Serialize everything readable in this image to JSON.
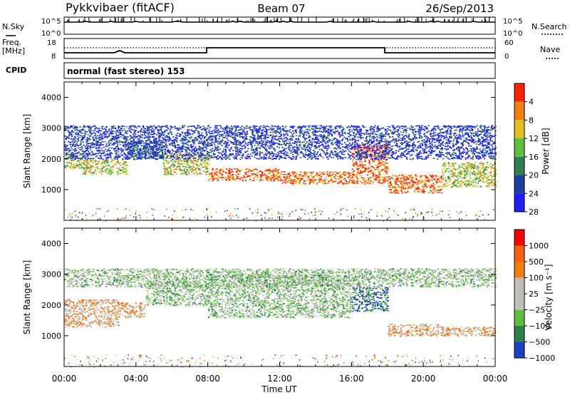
{
  "header": {
    "station": "Pykkvibaer (fitACF)",
    "beam": "Beam 07",
    "date": "26/Sep/2013"
  },
  "top_panels": {
    "nsky_label": "N.Sky",
    "nsky_ticks": [
      "10^5",
      "10^0"
    ],
    "nsearch_label": "N.Search",
    "nsearch_ticks": [
      "10^5",
      "10^0"
    ],
    "freq_label": "Freq.",
    "freq_unit": "[MHz]",
    "freq_ticks": [
      "18",
      "8"
    ],
    "nave_label": "Nave",
    "nave_ticks": [
      "60",
      "0"
    ],
    "cpid_label": "CPID",
    "cpid_text": "normal (fast stereo) 153"
  },
  "chart_data": [
    {
      "type": "heatmap",
      "ylabel": "Slant Range [km]",
      "yticks": [
        "1000",
        "2000",
        "3000",
        "4000"
      ],
      "ylim": [
        0,
        4500
      ],
      "colorbar": {
        "label": "Power [dB]",
        "ticks": [
          "4",
          "8",
          "12",
          "16",
          "20",
          "24",
          "28"
        ],
        "colors": [
          "#1f1fff",
          "#1f3fa0",
          "#2f7f4f",
          "#5fbf3f",
          "#e0c020",
          "#f08010",
          "#ff2000"
        ]
      },
      "bands": [
        {
          "t0": 0.0,
          "t1": 1.0,
          "r0": 1700,
          "r1": 2200,
          "level": 4
        },
        {
          "t0": 1.0,
          "t1": 3.5,
          "r0": 1500,
          "r1": 2000,
          "level": 4
        },
        {
          "t0": 3.5,
          "t1": 5.5,
          "r0": 2000,
          "r1": 2600,
          "level": 2
        },
        {
          "t0": 5.5,
          "t1": 8.0,
          "r0": 1500,
          "r1": 2200,
          "level": 4
        },
        {
          "t0": 8.0,
          "t1": 12.0,
          "r0": 1300,
          "r1": 1700,
          "level": 6
        },
        {
          "t0": 12.0,
          "t1": 16.0,
          "r0": 1200,
          "r1": 1600,
          "level": 6
        },
        {
          "t0": 16.0,
          "t1": 18.0,
          "r0": 1200,
          "r1": 2500,
          "level": 6
        },
        {
          "t0": 18.0,
          "t1": 21.0,
          "r0": 900,
          "r1": 1500,
          "level": 6
        },
        {
          "t0": 21.0,
          "t1": 24.0,
          "r0": 1100,
          "r1": 1900,
          "level": 4
        },
        {
          "t0": 0.0,
          "t1": 24.0,
          "r0": 2000,
          "r1": 3100,
          "level": 1
        }
      ]
    },
    {
      "type": "heatmap",
      "xlabel": "Time UT",
      "xticks": [
        "00:00",
        "04:00",
        "08:00",
        "12:00",
        "16:00",
        "20:00",
        "00:00"
      ],
      "ylabel": "Slant Range [km]",
      "yticks": [
        "1000",
        "2000",
        "3000",
        "4000"
      ],
      "ylim": [
        0,
        4500
      ],
      "colorbar": {
        "label": "Velocity [m s⁻¹]",
        "ticks": [
          "1000",
          "500",
          "100",
          "25",
          "−25",
          "−100",
          "−500",
          "−1000"
        ],
        "colors": [
          "#1f3fbf",
          "#2f7f4f",
          "#5fbf3f",
          "#bfbfb8",
          "#bfbfb8",
          "#f08010",
          "#ff6010",
          "#ff0000"
        ]
      },
      "bands": [
        {
          "t0": 0.0,
          "t1": 3.0,
          "r0": 1300,
          "r1": 2200,
          "level": 5
        },
        {
          "t0": 3.0,
          "t1": 4.5,
          "r0": 1600,
          "r1": 2100,
          "level": 5
        },
        {
          "t0": 4.5,
          "t1": 8.0,
          "r0": 2000,
          "r1": 2800,
          "level": 3
        },
        {
          "t0": 8.0,
          "t1": 16.0,
          "r0": 1600,
          "r1": 3000,
          "level": 3
        },
        {
          "t0": 16.0,
          "t1": 18.0,
          "r0": 1800,
          "r1": 2600,
          "level": 1
        },
        {
          "t0": 18.0,
          "t1": 21.0,
          "r0": 1000,
          "r1": 1400,
          "level": 5
        },
        {
          "t0": 21.0,
          "t1": 24.0,
          "r0": 1000,
          "r1": 1300,
          "level": 5
        },
        {
          "t0": 0.0,
          "t1": 24.0,
          "r0": 2600,
          "r1": 3200,
          "level": 3
        }
      ]
    }
  ],
  "colors": {
    "nsky_line": "#000000",
    "freq_line": "#000000",
    "nave_line": "#000000"
  }
}
